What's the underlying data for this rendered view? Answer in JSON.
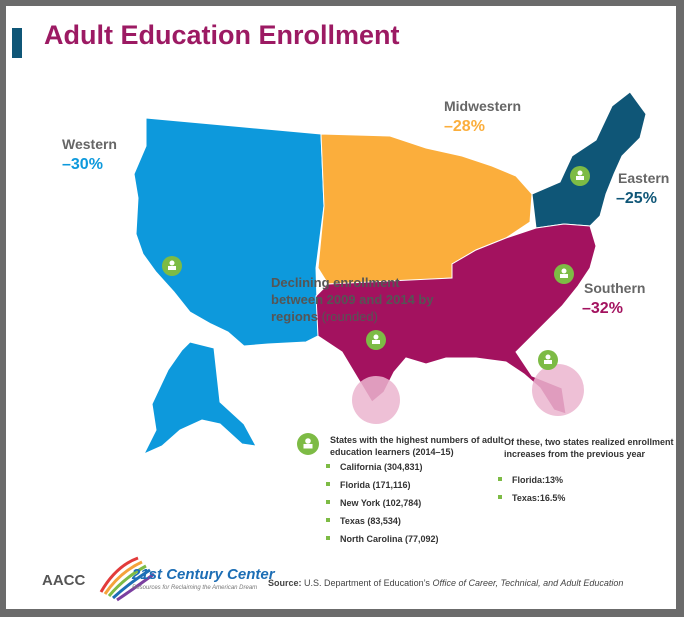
{
  "title": "Adult Education Enrollment",
  "colors": {
    "western": "#0d99dc",
    "midwestern": "#fbae3c",
    "eastern": "#0f5677",
    "southern": "#a3125f",
    "title": "#9c1a63",
    "title_bar": "#0f5677",
    "marker": "#7dbb45",
    "highlight": "#ebb5cf"
  },
  "regions": [
    {
      "name": "Western",
      "change": "–30%"
    },
    {
      "name": "Midwestern",
      "change": "–28%"
    },
    {
      "name": "Eastern",
      "change": "–25%"
    },
    {
      "name": "Southern",
      "change": "–32%"
    }
  ],
  "note": {
    "main": "Declining enrollment between 2009 and 2014  by regions",
    "suffix": "(rounded)"
  },
  "highest": {
    "title": "States with the highest numbers of adult education learners (2014–15)",
    "icon": "person-icon",
    "items": [
      "California (304,831)",
      "Florida (171,116)",
      "New York (102,784)",
      "Texas (83,534)",
      "North Carolina (77,092)"
    ]
  },
  "increases": {
    "title": "Of these, two states realized enrollment increases from the previous year",
    "items": [
      "Florida:13%",
      "Texas:16.5%"
    ]
  },
  "footer": {
    "logo_left": "AACC",
    "logo_right": "21st Century Center",
    "tagline": "Resources for Reclaiming the American Dream",
    "source_label": "Source:",
    "source_plain": "U.S. Department of Education’s",
    "source_italic": "Office of Career, Technical, and Adult Education"
  }
}
